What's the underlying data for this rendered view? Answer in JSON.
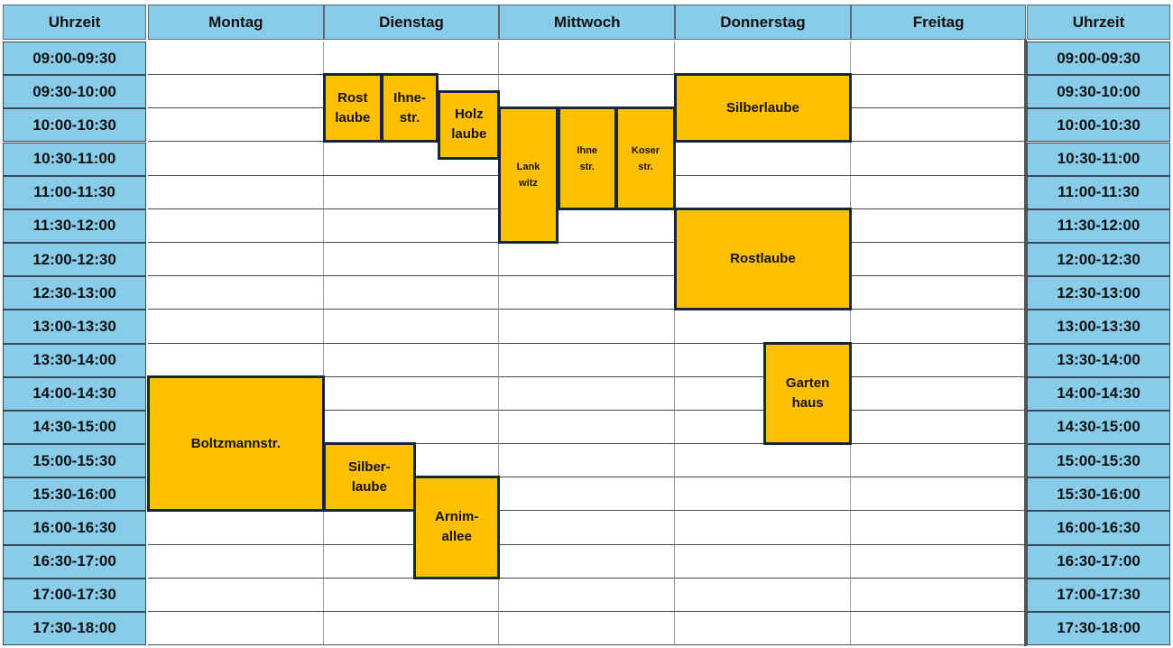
{
  "header": {
    "left": "Uhrzeit",
    "days": [
      "Montag",
      "Dienstag",
      "Mittwoch",
      "Donnerstag",
      "Freitag"
    ],
    "right": "Uhrzeit"
  },
  "times": [
    "09:00-09:30",
    "09:30-10:00",
    "10:00-10:30",
    "10:30-11:00",
    "11:00-11:30",
    "11:30-12:00",
    "12:00-12:30",
    "12:30-13:00",
    "13:00-13:30",
    "13:30-14:00",
    "14:00-14:30",
    "14:30-15:00",
    "15:00-15:30",
    "15:30-16:00",
    "16:00-16:30",
    "16:30-17:00",
    "17:00-17:30",
    "17:30-18:00"
  ],
  "colors": {
    "header": "#88CCEA",
    "block": "#FFC000",
    "block_border": "#14283a"
  },
  "blocks": [
    {
      "label": "Rost\nlaube",
      "day": "Dienstag",
      "start": "09:30",
      "end": "10:30"
    },
    {
      "label": "Ihne-\nstr.",
      "day": "Dienstag",
      "start": "09:30",
      "end": "10:30"
    },
    {
      "label": "Holz\nlaube",
      "day": "Dienstag",
      "start": "09:45",
      "end": "10:45"
    },
    {
      "label": "Lank\nwitz",
      "day": "Mittwoch",
      "start": "10:00",
      "end": "12:00"
    },
    {
      "label": "Ihne\nstr.",
      "day": "Mittwoch",
      "start": "10:00",
      "end": "11:30"
    },
    {
      "label": "Koser\nstr.",
      "day": "Mittwoch",
      "start": "10:00",
      "end": "11:30"
    },
    {
      "label": "Silberlaube",
      "day": "Donnerstag",
      "start": "09:30",
      "end": "10:30"
    },
    {
      "label": "Rostlaube",
      "day": "Donnerstag",
      "start": "11:30",
      "end": "13:00"
    },
    {
      "label": "Garten\nhaus",
      "day": "Donnerstag",
      "start": "13:30",
      "end": "15:00"
    },
    {
      "label": "Boltzmannstr.",
      "day": "Montag",
      "start": "14:00",
      "end": "16:00"
    },
    {
      "label": "Silber-\nlaube",
      "day": "Dienstag",
      "start": "15:00",
      "end": "16:00"
    },
    {
      "label": "Arnim-\nallee",
      "day": "Dienstag",
      "start": "15:30",
      "end": "17:00"
    }
  ]
}
